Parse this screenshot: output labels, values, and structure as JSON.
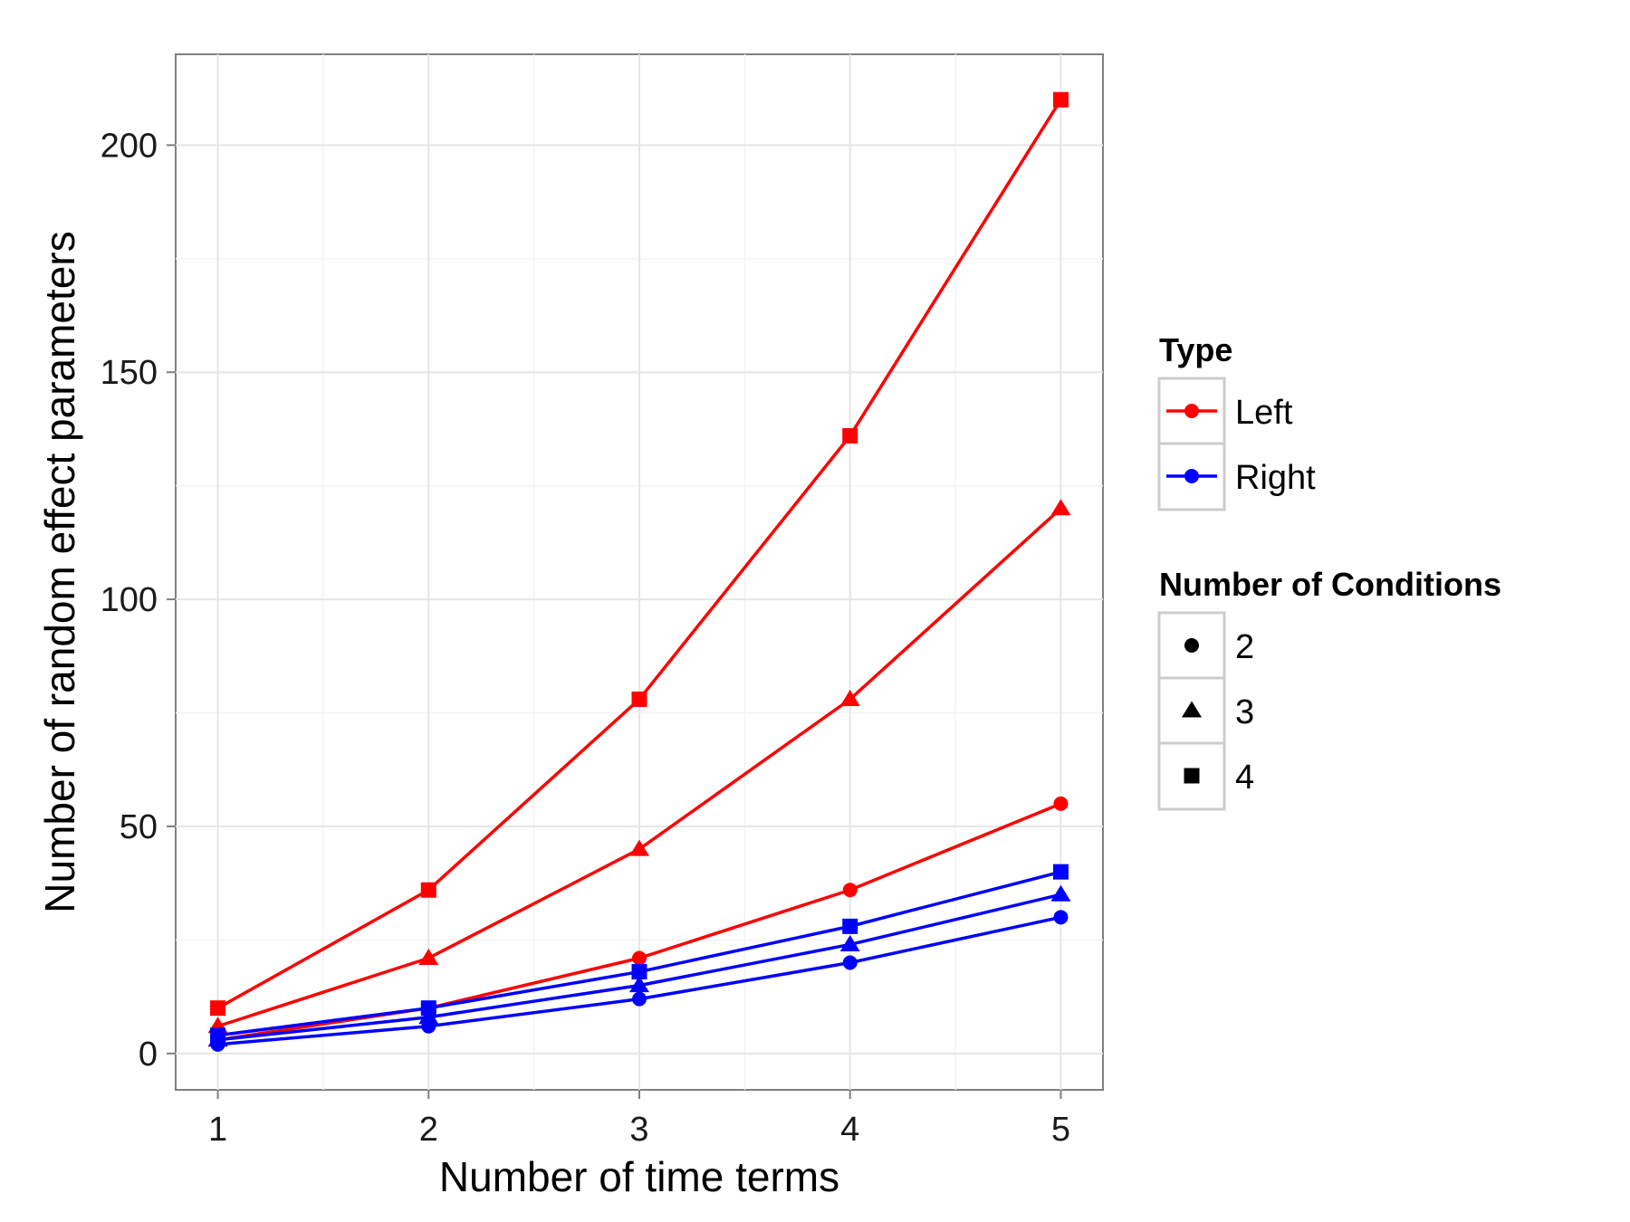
{
  "chart_data": {
    "type": "line",
    "title": "",
    "xlabel": "Number of time terms",
    "ylabel": "Number of random effect parameters",
    "x": [
      1,
      2,
      3,
      4,
      5
    ],
    "xlim": [
      0.8,
      5.2
    ],
    "ylim": [
      -8,
      220
    ],
    "xticks": [
      "1",
      "2",
      "3",
      "4",
      "5"
    ],
    "yticks": [
      0,
      50,
      100,
      150,
      200
    ],
    "grid": true,
    "legend_position": "right",
    "series": [
      {
        "type": "Left",
        "conditions": "4",
        "color": "#ff0000",
        "shape": "square",
        "values": [
          10,
          36,
          78,
          136,
          210
        ]
      },
      {
        "type": "Left",
        "conditions": "3",
        "color": "#ff0000",
        "shape": "triangle",
        "values": [
          6,
          21,
          45,
          78,
          120
        ]
      },
      {
        "type": "Left",
        "conditions": "2",
        "color": "#ff0000",
        "shape": "circle",
        "values": [
          3,
          10,
          21,
          36,
          55
        ]
      },
      {
        "type": "Right",
        "conditions": "4",
        "color": "#0000ff",
        "shape": "square",
        "values": [
          4,
          10,
          18,
          28,
          40
        ]
      },
      {
        "type": "Right",
        "conditions": "3",
        "color": "#0000ff",
        "shape": "triangle",
        "values": [
          3,
          8,
          15,
          24,
          35
        ]
      },
      {
        "type": "Right",
        "conditions": "2",
        "color": "#0000ff",
        "shape": "circle",
        "values": [
          2,
          6,
          12,
          20,
          30
        ]
      }
    ]
  },
  "legend": {
    "type_title": "Type",
    "type_items": [
      {
        "label": "Left",
        "color": "#ff0000"
      },
      {
        "label": "Right",
        "color": "#0000ff"
      }
    ],
    "conditions_title": "Number of Conditions",
    "conditions_items": [
      {
        "label": "2",
        "shape": "circle"
      },
      {
        "label": "3",
        "shape": "triangle"
      },
      {
        "label": "4",
        "shape": "square"
      }
    ]
  }
}
